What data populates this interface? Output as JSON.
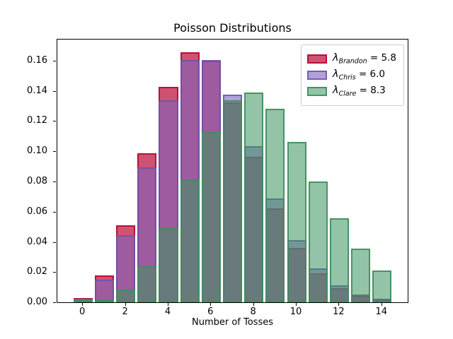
{
  "title": "Poisson Distributions",
  "xlabel": "Number of Tosses",
  "chart_data": {
    "type": "bar",
    "title": "Poisson Distributions",
    "xlabel": "Number of Tosses",
    "ylabel": "",
    "grid": false,
    "legend_position": "upper right",
    "lambda_symbol": "λ",
    "equals_sign": "=",
    "x": [
      0,
      1,
      2,
      3,
      4,
      5,
      6,
      7,
      8,
      9,
      10,
      11,
      12,
      13,
      14
    ],
    "bar_width": 0.9,
    "xlim": [
      -1.2,
      15.2
    ],
    "ylim": [
      0,
      0.174
    ],
    "xticks": [
      {
        "label": "0",
        "v": 0
      },
      {
        "label": "2",
        "v": 2
      },
      {
        "label": "4",
        "v": 4
      },
      {
        "label": "6",
        "v": 6
      },
      {
        "label": "8",
        "v": 8
      },
      {
        "label": "10",
        "v": 10
      },
      {
        "label": "12",
        "v": 12
      },
      {
        "label": "14",
        "v": 14
      }
    ],
    "yticks": [
      {
        "label": "0.00",
        "v": 0.0
      },
      {
        "label": "0.02",
        "v": 0.02
      },
      {
        "label": "0.04",
        "v": 0.04
      },
      {
        "label": "0.06",
        "v": 0.06
      },
      {
        "label": "0.08",
        "v": 0.08
      },
      {
        "label": "0.10",
        "v": 0.1
      },
      {
        "label": "0.12",
        "v": 0.12
      },
      {
        "label": "0.14",
        "v": 0.14
      },
      {
        "label": "0.16",
        "v": 0.16
      }
    ],
    "series": [
      {
        "name": "Brandon",
        "lambda_value": "5.8",
        "legend_label": "λ_Brandon = 5.8",
        "fill": "rgba(190,15,60,0.72)",
        "edge": "rgba(178,10,50,0.9)",
        "values": [
          0.003,
          0.0176,
          0.0509,
          0.0985,
          0.1428,
          0.1656,
          0.1601,
          0.1326,
          0.0962,
          0.062,
          0.0359,
          0.019,
          0.0092,
          0.0041,
          0.0017
        ]
      },
      {
        "name": "Chris",
        "lambda_value": "6.0",
        "legend_label": "λ_Chris = 6.0",
        "fill": "rgba(126,98,190,0.6)",
        "edge": "rgba(108,82,170,0.85)",
        "values": [
          0.0025,
          0.0149,
          0.0446,
          0.0892,
          0.1339,
          0.1606,
          0.1606,
          0.1377,
          0.1033,
          0.0688,
          0.0413,
          0.0225,
          0.0113,
          0.0052,
          0.0022
        ]
      },
      {
        "name": "Clare",
        "lambda_value": "8.3",
        "legend_label": "λ_Clare = 8.3",
        "fill": "rgba(58,148,94,0.55)",
        "edge": "rgba(62,142,92,0.9)",
        "values": [
          0.0002,
          0.0021,
          0.0086,
          0.0237,
          0.0491,
          0.0816,
          0.1129,
          0.1338,
          0.1388,
          0.128,
          0.1063,
          0.0802,
          0.0555,
          0.0354,
          0.021
        ]
      }
    ]
  }
}
